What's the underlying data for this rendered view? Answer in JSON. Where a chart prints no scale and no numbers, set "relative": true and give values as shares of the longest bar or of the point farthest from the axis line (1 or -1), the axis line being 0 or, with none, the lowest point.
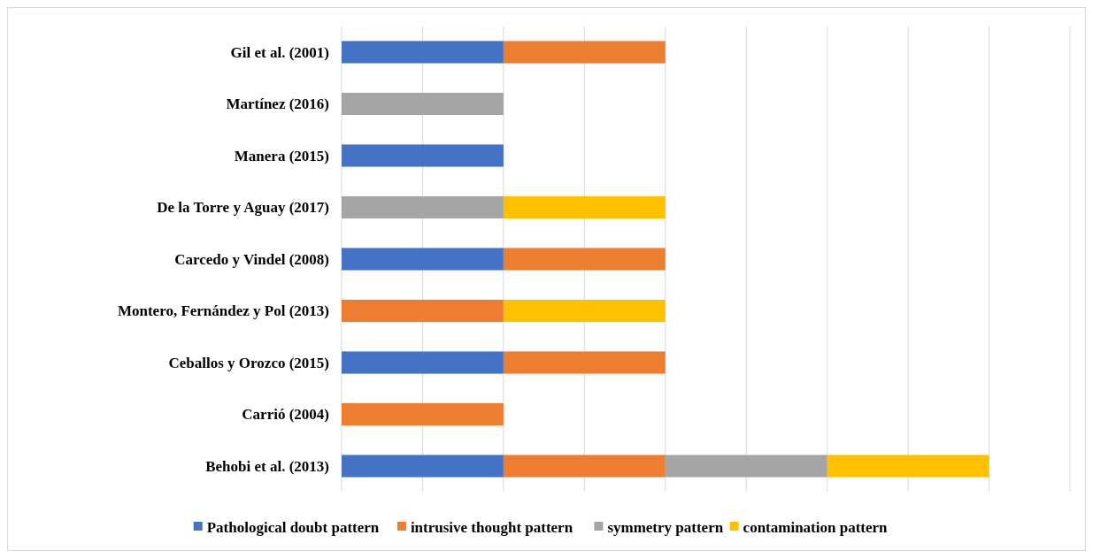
{
  "chart_data": {
    "type": "bar",
    "orientation": "horizontal",
    "stacked": true,
    "relative": true,
    "grid": "x",
    "legend": "bottom",
    "categories": [
      "Gil et al. (2001)",
      "Martínez (2016)",
      "Manera (2015)",
      "De la Torre y Aguay (2017)",
      "Carcedo y Vindel (2008)",
      "Montero, Fernández y Pol (2013)",
      "Ceballos y Orozco (2015)",
      "Carrió (2004)",
      "Behobi et al. (2013)"
    ],
    "series": [
      {
        "name": "Pathological doubt pattern",
        "color": "#4472c4",
        "values": [
          0.25,
          null,
          0.25,
          null,
          0.25,
          null,
          0.25,
          null,
          0.25
        ]
      },
      {
        "name": "intrusive thought pattern",
        "color": "#ed7d31",
        "values": [
          0.25,
          null,
          null,
          null,
          0.25,
          0.25,
          0.25,
          0.25,
          0.25
        ]
      },
      {
        "name": "symmetry pattern",
        "color": "#a5a5a5",
        "values": [
          null,
          0.25,
          null,
          0.25,
          null,
          null,
          null,
          null,
          0.25
        ]
      },
      {
        "name": "contamination pattern",
        "color": "#ffc000",
        "values": [
          null,
          null,
          null,
          0.25,
          null,
          0.25,
          null,
          null,
          0.25
        ]
      }
    ]
  }
}
